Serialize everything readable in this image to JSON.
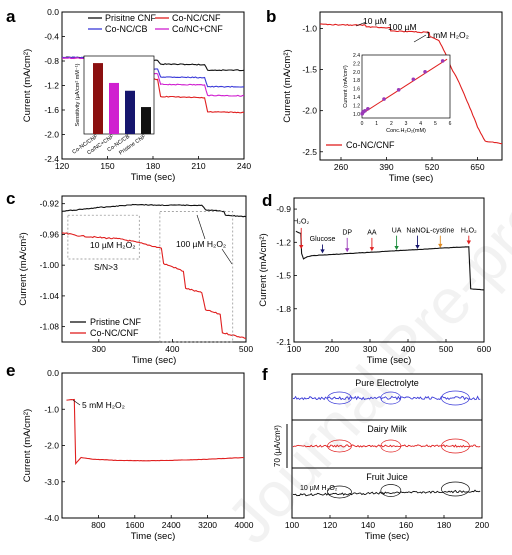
{
  "watermark": "Journal Pre-proof",
  "panels": {
    "a": {
      "label": "a"
    },
    "b": {
      "label": "b"
    },
    "c": {
      "label": "c"
    },
    "d": {
      "label": "d"
    },
    "e": {
      "label": "e"
    },
    "f": {
      "label": "f"
    }
  },
  "colors": {
    "black": "#111111",
    "red": "#e02020",
    "blue": "#3a3ad8",
    "magenta": "#d020d0",
    "dark_red": "#8b1010",
    "navy": "#16166e",
    "green": "#1a8a3a",
    "orange": "#e08a20",
    "purple": "#9a3ab8"
  },
  "chart_data": [
    {
      "panel": "a",
      "type": "line",
      "xlabel": "Time (sec)",
      "ylabel": "Current (mA/cm²)",
      "xlim": [
        120,
        240
      ],
      "ylim": [
        -2.4,
        0.0
      ],
      "xticks": [
        "120",
        "150",
        "180",
        "210",
        "240"
      ],
      "yticks": [
        "0.0",
        "-0.4",
        "-0.8",
        "-1.2",
        "-1.6",
        "-2.0",
        "-2.4"
      ],
      "legend": [
        "Prisitne CNF",
        "Co-NC/CNF",
        "Co-NC/CB",
        "Co/NC+CNF"
      ],
      "series": [
        {
          "name": "Prisitne CNF",
          "color": "black",
          "points": [
            [
              120,
              -0.74
            ],
            [
              153,
              -0.74
            ],
            [
              155,
              -0.78
            ],
            [
              183,
              -0.79
            ],
            [
              185,
              -0.85
            ],
            [
              214,
              -0.86
            ],
            [
              216,
              -0.95
            ],
            [
              240,
              -0.95
            ]
          ]
        },
        {
          "name": "Co-NC/CNF",
          "color": "red",
          "points": [
            [
              120,
              -0.75
            ],
            [
              153,
              -0.76
            ],
            [
              155,
              -1.08
            ],
            [
              183,
              -1.1
            ],
            [
              185,
              -1.38
            ],
            [
              214,
              -1.4
            ],
            [
              216,
              -1.63
            ],
            [
              240,
              -1.64
            ]
          ]
        },
        {
          "name": "Co-NC/CB",
          "color": "blue",
          "points": [
            [
              120,
              -0.74
            ],
            [
              153,
              -0.75
            ],
            [
              155,
              -0.92
            ],
            [
              183,
              -0.93
            ],
            [
              185,
              -1.06
            ],
            [
              214,
              -1.07
            ],
            [
              216,
              -1.22
            ],
            [
              240,
              -1.22
            ]
          ]
        },
        {
          "name": "Co/NC+CNF",
          "color": "magenta",
          "points": [
            [
              120,
              -0.75
            ],
            [
              153,
              -0.76
            ],
            [
              155,
              -1.0
            ],
            [
              183,
              -1.01
            ],
            [
              185,
              -1.18
            ],
            [
              214,
              -1.19
            ],
            [
              216,
              -1.36
            ],
            [
              240,
              -1.37
            ]
          ]
        }
      ],
      "inset": {
        "type": "bar",
        "ylabel": "Sensitivity (µA/cm² mM⁻¹)",
        "categories": [
          "Co-NC/CNF",
          "Co/NC+CNF",
          "Co-NC/CB",
          "Pristine CNF"
        ],
        "values": [
          100,
          72,
          61,
          38
        ],
        "ylim": [
          0,
          110
        ],
        "colors": [
          "dark_red",
          "magenta",
          "navy",
          "black"
        ]
      }
    },
    {
      "panel": "b",
      "type": "line",
      "xlabel": "Time (sec)",
      "ylabel": "Current (mA/cm²)",
      "xlim": [
        200,
        720
      ],
      "ylim": [
        -2.6,
        -0.8
      ],
      "xticks": [
        "260",
        "390",
        "520",
        "650"
      ],
      "yticks": [
        "-1.0",
        "-1.5",
        "-2.0",
        "-2.5"
      ],
      "legend": [
        "Co-NC/CNF"
      ],
      "annotations": [
        "10 µM",
        "100 µM",
        "1 mM H₂O₂"
      ],
      "series": [
        {
          "name": "Co-NC/CNF",
          "color": "red",
          "points": [
            [
              200,
              -0.95
            ],
            [
              330,
              -0.96
            ],
            [
              332,
              -0.98
            ],
            [
              400,
              -0.99
            ],
            [
              402,
              -1.03
            ],
            [
              512,
              -1.05
            ],
            [
              514,
              -1.1
            ],
            [
              540,
              -1.15
            ],
            [
              558,
              -1.3
            ],
            [
              575,
              -1.48
            ],
            [
              593,
              -1.62
            ],
            [
              612,
              -1.8
            ],
            [
              632,
              -2.0
            ],
            [
              650,
              -2.2
            ],
            [
              672,
              -2.37
            ],
            [
              720,
              -2.4
            ]
          ]
        }
      ],
      "inset": {
        "type": "scatter",
        "xlabel": "Conc.H₂O₂(mM)",
        "ylabel": "Current (mA/cm²)",
        "xlim": [
          0,
          6
        ],
        "ylim": [
          0.9,
          2.4
        ],
        "xticks": [
          "0",
          "1",
          "2",
          "3",
          "4",
          "5",
          "6"
        ],
        "yticks": [
          "1.0",
          "1.2",
          "1.4",
          "1.6",
          "1.8",
          "2.0",
          "2.2",
          "2.4"
        ],
        "points": [
          [
            0.01,
            1.0
          ],
          [
            0.02,
            1.01
          ],
          [
            0.05,
            1.03
          ],
          [
            0.1,
            1.05
          ],
          [
            0.2,
            1.07
          ],
          [
            0.4,
            1.12
          ],
          [
            1.5,
            1.35
          ],
          [
            2.5,
            1.57
          ],
          [
            3.5,
            1.82
          ],
          [
            4.3,
            2.0
          ],
          [
            5.5,
            2.26
          ]
        ],
        "fit": [
          [
            0,
            1.0
          ],
          [
            5.8,
            2.3
          ]
        ]
      }
    },
    {
      "panel": "c",
      "type": "line",
      "xlabel": "Time (sec)",
      "ylabel": "Current (mA/cm²)",
      "xlim": [
        250,
        500
      ],
      "ylim": [
        -1.1,
        -0.91
      ],
      "xticks": [
        "300",
        "400",
        "500"
      ],
      "yticks": [
        "-0.92",
        "-0.96",
        "-1.00",
        "-1.04",
        "-1.08"
      ],
      "legend": [
        "Pristine CNF",
        "Co-NC/CNF"
      ],
      "annotations": [
        "10 µM H₂O₂",
        "S/N>3",
        "100 µM H₂O₂"
      ],
      "series": [
        {
          "name": "Pristine CNF",
          "color": "black",
          "points": [
            [
              250,
              -0.93
            ],
            [
              300,
              -0.925
            ],
            [
              350,
              -0.921
            ],
            [
              380,
              -0.922
            ],
            [
              440,
              -0.922
            ],
            [
              445,
              -0.928
            ],
            [
              470,
              -0.93
            ],
            [
              472,
              -0.935
            ],
            [
              500,
              -0.937
            ]
          ]
        },
        {
          "name": "Co-NC/CNF",
          "color": "red",
          "points": [
            [
              250,
              -0.958
            ],
            [
              275,
              -0.962
            ],
            [
              300,
              -0.964
            ],
            [
              330,
              -0.966
            ],
            [
              360,
              -0.972
            ],
            [
              385,
              -0.978
            ],
            [
              388,
              -0.998
            ],
            [
              400,
              -1.002
            ],
            [
              415,
              -1.008
            ],
            [
              418,
              -1.03
            ],
            [
              440,
              -1.036
            ],
            [
              445,
              -1.058
            ],
            [
              465,
              -1.064
            ],
            [
              468,
              -1.088
            ],
            [
              500,
              -1.095
            ]
          ]
        }
      ]
    },
    {
      "panel": "d",
      "type": "line",
      "xlabel": "Time (sec)",
      "ylabel": "Current (mA/cm²)",
      "xlim": [
        100,
        600
      ],
      "ylim": [
        -2.1,
        -0.8
      ],
      "xticks": [
        "100",
        "200",
        "300",
        "400",
        "500",
        "600"
      ],
      "yticks": [
        "-0.9",
        "-1.2",
        "-1.5",
        "-1.8",
        "-2.1"
      ],
      "annotations": [
        "H₂O₂",
        "Glucose",
        "DP",
        "AA",
        "UA",
        "NaNO₂",
        "L-cystine",
        "H₂O₂"
      ],
      "series": [
        {
          "name": "",
          "color": "black",
          "points": [
            [
              105,
              -1.1
            ],
            [
              118,
              -1.12
            ],
            [
              120,
              -1.3
            ],
            [
              125,
              -1.35
            ],
            [
              135,
              -1.33
            ],
            [
              150,
              -1.32
            ],
            [
              200,
              -1.31
            ],
            [
              300,
              -1.29
            ],
            [
              400,
              -1.27
            ],
            [
              500,
              -1.25
            ],
            [
              560,
              -1.24
            ],
            [
              565,
              -1.62
            ],
            [
              600,
              -1.63
            ]
          ]
        }
      ]
    },
    {
      "panel": "e",
      "type": "line",
      "xlabel": "Time (sec)",
      "ylabel": "Current (mA/cm²)",
      "xlim": [
        0,
        4000
      ],
      "ylim": [
        -4.0,
        0.0
      ],
      "xticks": [
        "800",
        "1600",
        "2400",
        "3200",
        "4000"
      ],
      "yticks": [
        "0.0",
        "-1.0",
        "-2.0",
        "-3.0",
        "-4.0"
      ],
      "annotations": [
        "5 mM H₂O₂"
      ],
      "series": [
        {
          "name": "",
          "color": "red",
          "points": [
            [
              100,
              -0.75
            ],
            [
              270,
              -0.73
            ],
            [
              300,
              -2.5
            ],
            [
              420,
              -2.33
            ],
            [
              700,
              -2.38
            ],
            [
              1200,
              -2.41
            ],
            [
              1800,
              -2.42
            ],
            [
              2400,
              -2.41
            ],
            [
              3200,
              -2.38
            ],
            [
              4000,
              -2.33
            ]
          ]
        }
      ]
    },
    {
      "panel": "f",
      "type": "line",
      "xlabel": "Time (sec)",
      "ylabel": "70 (µA/cm²)",
      "xlim": [
        100,
        200
      ],
      "xticks": [
        "100",
        "120",
        "140",
        "160",
        "180",
        "200"
      ],
      "annotations": [
        "10 µM H₂O₂"
      ],
      "series": [
        {
          "name": "Pure Electrolyte",
          "color": "blue"
        },
        {
          "name": "Dairy Milk",
          "color": "red"
        },
        {
          "name": "Fruit Juice",
          "color": "black"
        }
      ]
    }
  ]
}
